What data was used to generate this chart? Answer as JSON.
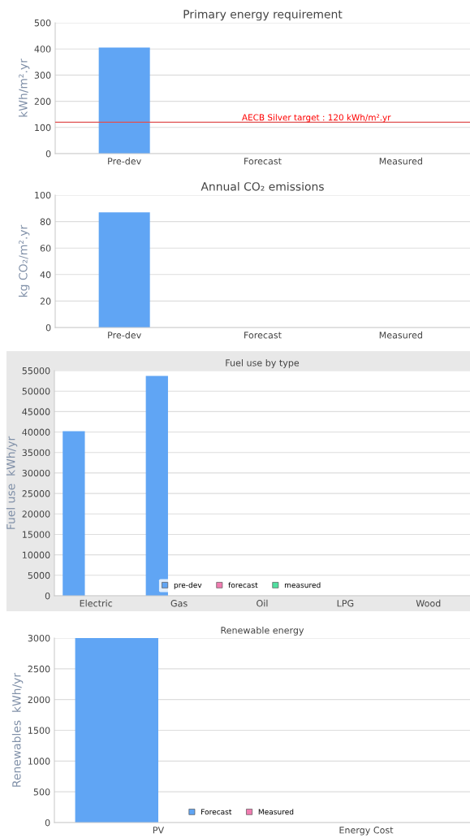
{
  "chart_data": [
    {
      "type": "bar",
      "title": "Primary energy requirement",
      "ylabel": "kWh/m².yr",
      "categories": [
        "Pre-dev",
        "Forecast",
        "Measured"
      ],
      "values": [
        405,
        null,
        null
      ],
      "color": "#60a5f4",
      "ylim": [
        0,
        500
      ],
      "yticks": [
        0,
        100,
        200,
        300,
        400,
        500
      ],
      "grid": "y",
      "ref_lines": [
        {
          "axis": "y",
          "value": 120,
          "label": "AECB Silver target : 120 kWh/m².yr",
          "color": "#e05050"
        }
      ]
    },
    {
      "type": "bar",
      "title": "Annual CO₂ emissions",
      "ylabel": "kg CO₂/m².yr",
      "categories": [
        "Pre-dev",
        "Forecast",
        "Measured"
      ],
      "values": [
        87,
        null,
        null
      ],
      "color": "#60a5f4",
      "ylim": [
        0,
        100
      ],
      "yticks": [
        0,
        20,
        40,
        60,
        80,
        100
      ],
      "grid": "y"
    },
    {
      "type": "bar",
      "title": "Fuel use by type",
      "ylabel": "Fuel use  kWh/yr",
      "categories": [
        "Electric",
        "Gas",
        "Oil",
        "LPG",
        "Wood"
      ],
      "ylim": [
        0,
        55000
      ],
      "yticks": [
        0,
        5000,
        10000,
        15000,
        20000,
        25000,
        30000,
        35000,
        40000,
        45000,
        50000,
        55000
      ],
      "grid": "y",
      "legend": "bottom",
      "series": [
        {
          "name": "pre-dev",
          "color": "#60a5f4",
          "values": [
            40200,
            53700,
            null,
            null,
            null
          ]
        },
        {
          "name": "forecast",
          "color": "#f07cb0",
          "values": [
            null,
            null,
            null,
            null,
            null
          ]
        },
        {
          "name": "measured",
          "color": "#50e0a0",
          "values": [
            null,
            null,
            null,
            null,
            null
          ]
        }
      ]
    },
    {
      "type": "bar",
      "title": "Renewable energy",
      "ylabel": "Renewables  kWh/yr",
      "categories": [
        "PV",
        "Energy Cost"
      ],
      "ylim": [
        0,
        3000
      ],
      "yticks": [
        0,
        500,
        1000,
        1500,
        2000,
        2500,
        3000
      ],
      "grid": "y",
      "legend": "bottom",
      "series": [
        {
          "name": "Forecast",
          "color": "#60a5f4",
          "values": [
            3000,
            null
          ]
        },
        {
          "name": "Measured",
          "color": "#f07cb0",
          "values": [
            null,
            null
          ]
        }
      ]
    }
  ]
}
